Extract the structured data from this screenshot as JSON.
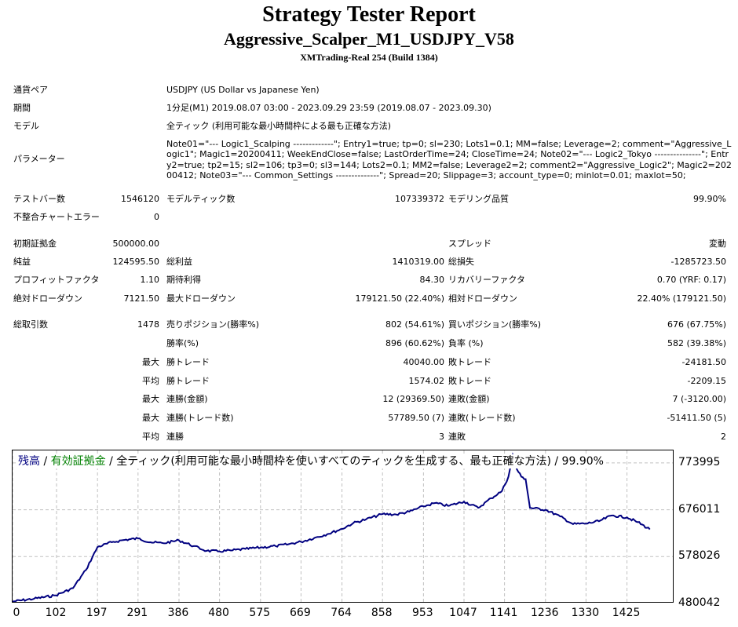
{
  "report": {
    "title": "Strategy Tester Report",
    "subtitle": "Aggressive_Scalper_M1_USDJPY_V58",
    "server": "XMTrading-Real 254 (Build 1384)"
  },
  "info": {
    "symbol_label": "通貨ペア",
    "symbol_value": "USDJPY (US Dollar vs Japanese Yen)",
    "period_label": "期間",
    "period_value": "1分足(M1) 2019.08.07 03:00 - 2023.09.29 23:59 (2019.08.07 - 2023.09.30)",
    "model_label": "モデル",
    "model_value": "全ティック (利用可能な最小時間枠による最も正確な方法)",
    "params_label": "パラメーター",
    "params_value": "Note01=\"--- Logic1_Scalping -------------\"; Entry1=true; tp=0; sl=230; Lots1=0.1; MM=false; Leverage=2; comment=\"Aggressive_Logic1\"; Magic1=20200411; WeekEndClose=false; LastOrderTime=24; CloseTime=24; Note02=\"--- Logic2_Tokyo ---------------\"; Entry2=true; tp2=15; sl2=106; tp3=0; sl3=144; Lots2=0.1; MM2=false; Leverage2=2; comment2=\"Aggressive_Logic2\"; Magic2=20200412; Note03=\"--- Common_Settings --------------\"; Spread=20; Slippage=3; account_type=0; minlot=0.01; maxlot=50;"
  },
  "stats": {
    "bars_label": "テストバー数",
    "bars_value": "1546120",
    "ticks_label": "モデルティック数",
    "ticks_value": "107339372",
    "quality_label": "モデリング品質",
    "quality_value": "99.90%",
    "mismatch_label": "不整合チャートエラー",
    "mismatch_value": "0",
    "deposit_label": "初期証拠金",
    "deposit_value": "500000.00",
    "spread_label": "スプレッド",
    "spread_value": "変動",
    "net_label": "純益",
    "net_value": "124595.50",
    "gross_profit_label": "総利益",
    "gross_profit_value": "1410319.00",
    "gross_loss_label": "総損失",
    "gross_loss_value": "-1285723.50",
    "pf_label": "プロフィットファクタ",
    "pf_value": "1.10",
    "expected_label": "期待利得",
    "expected_value": "84.30",
    "recovery_label": "リカバリーファクタ",
    "recovery_value": "0.70 (YRF: 0.17)",
    "abs_dd_label": "絶対ドローダウン",
    "abs_dd_value": "7121.50",
    "max_dd_label": "最大ドローダウン",
    "max_dd_value": "179121.50 (22.40%)",
    "rel_dd_label": "相対ドローダウン",
    "rel_dd_value": "22.40% (179121.50)",
    "trades_label": "総取引数",
    "trades_value": "1478",
    "short_label": "売りポジション(勝率%)",
    "short_value": "802 (54.61%)",
    "long_label": "買いポジション(勝率%)",
    "long_value": "676 (67.75%)",
    "winrate_label": "勝率(%)",
    "winrate_value": "896 (60.62%)",
    "lossrate_label": "負率 (%)",
    "lossrate_value": "582 (39.38%)",
    "max_word": "最大",
    "avg_word": "平均",
    "win_trade_label": "勝トレード",
    "loss_trade_label": "敗トレード",
    "largest_win_value": "40040.00",
    "largest_loss_value": "-24181.50",
    "avg_win_value": "1574.02",
    "avg_loss_value": "-2209.15",
    "consec_wins_money_label": "連勝(金額)",
    "consec_wins_money_value": "12 (29369.50)",
    "consec_losses_money_label": "連敗(金額)",
    "consec_losses_money_value": "7 (-3120.00)",
    "consec_profit_label": "連勝(トレード数)",
    "consec_profit_value": "57789.50 (7)",
    "consec_loss_label": "連敗(トレード数)",
    "consec_loss_value": "-51411.50 (5)",
    "avg_consec_wins_label": "連勝",
    "avg_consec_wins_value": "3",
    "avg_consec_losses_label": "連敗",
    "avg_consec_losses_value": "2"
  },
  "chart": {
    "legend_balance": "残高",
    "legend_sep1": " / ",
    "legend_equity": "有効証拠金",
    "legend_rest": " / 全ティック(利用可能な最小時間枠を使いすべてのティックを生成する、最も正確な方法) / 99.90%"
  },
  "colors": {
    "balance": "#000080",
    "equity": "#008000",
    "grid": "#c0c0c0"
  },
  "chart_data": {
    "type": "line",
    "series": [
      {
        "name": "残高",
        "x": [
          0,
          50,
          100,
          140,
          170,
          197,
          230,
          260,
          291,
          320,
          350,
          386,
          420,
          450,
          480,
          510,
          540,
          575,
          610,
          640,
          669,
          700,
          730,
          764,
          790,
          820,
          858,
          890,
          920,
          953,
          980,
          1010,
          1047,
          1080,
          1110,
          1135,
          1150,
          1160,
          1170,
          1180,
          1190,
          1200,
          1236,
          1270,
          1300,
          1330,
          1360,
          1390,
          1425,
          1450,
          1478
        ],
        "y": [
          484000,
          490000,
          497000,
          512000,
          550000,
          598000,
          608000,
          613000,
          616000,
          608000,
          606000,
          612000,
          600000,
          590000,
          589000,
          591000,
          594000,
          597000,
          600000,
          604000,
          609000,
          617000,
          625000,
          636000,
          648000,
          656000,
          667000,
          666000,
          672000,
          683000,
          690000,
          684000,
          693000,
          680000,
          700000,
          715000,
          745000,
          790000,
          760000,
          745000,
          740000,
          680000,
          676000,
          662000,
          646000,
          647000,
          652000,
          664000,
          660000,
          650000,
          635000
        ]
      }
    ],
    "y_ticks": [
      773995,
      676011,
      578026,
      480042
    ],
    "x_ticks": [
      0,
      102,
      197,
      291,
      386,
      480,
      575,
      669,
      764,
      858,
      953,
      1047,
      1141,
      1236,
      1330,
      1425
    ],
    "ylim": [
      480042,
      800000
    ],
    "xlim": [
      0,
      1535
    ],
    "grid": true,
    "legend_placement": "top-left"
  }
}
